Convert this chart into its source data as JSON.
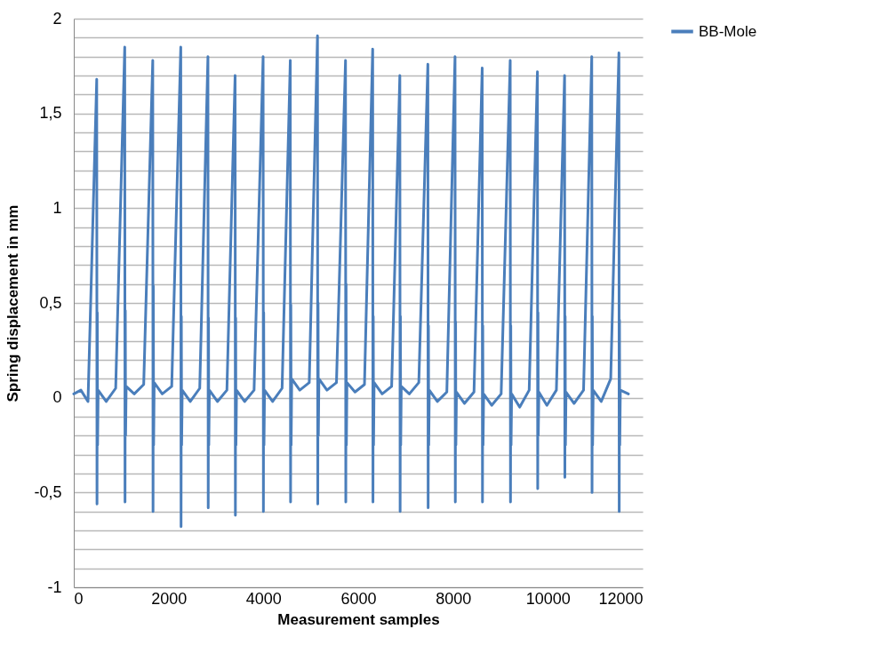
{
  "chart_data": {
    "type": "line",
    "xlabel": "Measurement samples",
    "ylabel": "Spring displacement in mm",
    "x": [
      0,
      150,
      300,
      484,
      490,
      496,
      502,
      514,
      684,
      884,
      1075,
      1081,
      1087,
      1093,
      1105,
      1275,
      1475,
      1666,
      1672,
      1678,
      1684,
      1696,
      1866,
      2066,
      2257,
      2263,
      2269,
      2275,
      2287,
      2457,
      2657,
      2830,
      2836,
      2842,
      2848,
      2860,
      3030,
      3230,
      3403,
      3409,
      3415,
      3421,
      3433,
      3603,
      3803,
      3994,
      4000,
      4006,
      4012,
      4024,
      4194,
      4394,
      4567,
      4573,
      4579,
      4585,
      4597,
      4767,
      4967,
      5141,
      5147,
      5153,
      5159,
      5171,
      5341,
      5541,
      5732,
      5738,
      5744,
      5750,
      5762,
      5932,
      6132,
      6305,
      6311,
      6317,
      6323,
      6335,
      6505,
      6705,
      6878,
      6884,
      6890,
      6896,
      6908,
      7078,
      7278,
      7469,
      7475,
      7481,
      7487,
      7499,
      7669,
      7869,
      8042,
      8048,
      8054,
      8060,
      8072,
      8242,
      8442,
      8615,
      8621,
      8627,
      8633,
      8645,
      8815,
      9015,
      9206,
      9212,
      9218,
      9224,
      9236,
      9406,
      9606,
      9780,
      9786,
      9792,
      9798,
      9810,
      9980,
      10180,
      10353,
      10359,
      10365,
      10371,
      10383,
      10553,
      10753,
      10926,
      10932,
      10938,
      10944,
      10956,
      11126,
      11326,
      11499,
      11505,
      11511,
      11517,
      11529,
      11699
    ],
    "series": [
      {
        "name": "BB-Mole",
        "color": "#4a7ebb",
        "values": [
          0.02,
          0.04,
          -0.02,
          1.68,
          -0.56,
          0.45,
          -0.25,
          0.04,
          -0.02,
          0.05,
          1.85,
          -0.55,
          0.46,
          -0.2,
          0.06,
          0.02,
          0.07,
          1.78,
          -0.6,
          0.59,
          -0.25,
          0.08,
          0.02,
          0.06,
          1.85,
          -0.68,
          0.43,
          -0.25,
          0.04,
          -0.02,
          0.05,
          1.8,
          -0.58,
          0.42,
          -0.25,
          0.04,
          -0.02,
          0.04,
          1.7,
          -0.62,
          0.42,
          -0.25,
          0.04,
          -0.02,
          0.04,
          1.8,
          -0.6,
          0.45,
          -0.25,
          0.04,
          -0.02,
          0.05,
          1.78,
          -0.55,
          0.49,
          -0.25,
          0.1,
          0.04,
          0.08,
          1.91,
          -0.56,
          0.5,
          -0.2,
          0.1,
          0.04,
          0.08,
          1.78,
          -0.55,
          0.6,
          -0.25,
          0.08,
          0.03,
          0.07,
          1.84,
          -0.55,
          0.43,
          -0.25,
          0.08,
          0.02,
          0.06,
          1.7,
          -0.6,
          0.43,
          -0.25,
          0.06,
          0.02,
          0.08,
          1.76,
          -0.58,
          0.38,
          -0.25,
          0.04,
          -0.02,
          0.03,
          1.8,
          -0.55,
          0.4,
          -0.25,
          0.03,
          -0.03,
          0.03,
          1.74,
          -0.55,
          0.38,
          -0.25,
          0.02,
          -0.04,
          0.02,
          1.78,
          -0.55,
          0.38,
          -0.25,
          0.02,
          -0.05,
          0.04,
          1.72,
          -0.48,
          0.45,
          -0.2,
          0.03,
          -0.04,
          0.04,
          1.7,
          -0.42,
          0.43,
          -0.25,
          0.03,
          -0.03,
          0.04,
          1.8,
          -0.5,
          0.43,
          -0.25,
          0.04,
          -0.02,
          0.1,
          1.82,
          -0.6,
          0.41,
          -0.25,
          0.04,
          0.02
        ]
      }
    ],
    "xlim": [
      0,
      12000
    ],
    "xticks": [
      0,
      2000,
      4000,
      6000,
      8000,
      10000,
      12000
    ],
    "ylim": [
      -1,
      2
    ],
    "yticks": [
      -1,
      {
        "value": -0.9,
        "label": null
      },
      {
        "value": -0.8,
        "label": null
      },
      {
        "value": -0.7,
        "label": null
      },
      {
        "value": -0.6,
        "label": null
      },
      {
        "value": -0.5,
        "label": "-0,5"
      },
      {
        "value": -0.4,
        "label": null
      },
      {
        "value": -0.3,
        "label": null
      },
      {
        "value": -0.2,
        "label": null
      },
      {
        "value": -0.1,
        "label": null
      },
      0,
      {
        "value": 0.1,
        "label": null
      },
      {
        "value": 0.2,
        "label": null
      },
      {
        "value": 0.3,
        "label": null
      },
      {
        "value": 0.4,
        "label": null
      },
      {
        "value": 0.5,
        "label": "0,5"
      },
      {
        "value": 0.6,
        "label": null
      },
      {
        "value": 0.7,
        "label": null
      },
      {
        "value": 0.8,
        "label": null
      },
      {
        "value": 0.9,
        "label": null
      },
      1,
      {
        "value": 1.1,
        "label": null
      },
      {
        "value": 1.2,
        "label": null
      },
      {
        "value": 1.3,
        "label": null
      },
      {
        "value": 1.4,
        "label": null
      },
      {
        "value": 1.5,
        "label": "1,5"
      },
      {
        "value": 1.6,
        "label": null
      },
      {
        "value": 1.7,
        "label": null
      },
      {
        "value": 1.8,
        "label": null
      },
      {
        "value": 1.9,
        "label": null
      },
      2
    ],
    "grid": "y",
    "legend": "right",
    "line_style": "solid",
    "marker": "none"
  }
}
